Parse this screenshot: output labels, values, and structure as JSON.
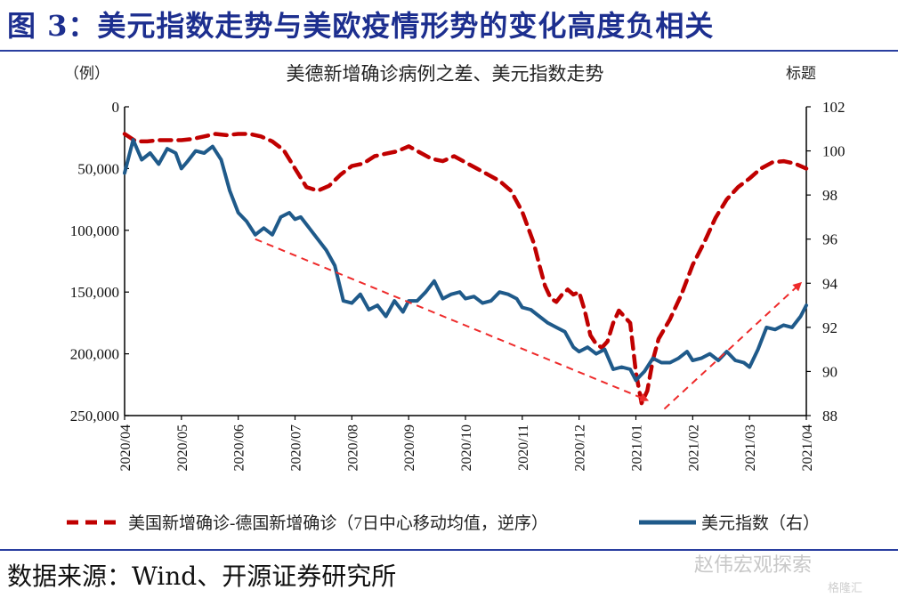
{
  "header": {
    "title": "图 3：美元指数走势与美欧疫情形势的变化高度负相关"
  },
  "footer": {
    "source": "数据来源：Wind、开源证券研究所",
    "watermark": "赵伟宏观探索",
    "watermark2": "格隆汇"
  },
  "colors": {
    "red": "#c00000",
    "blue": "#1f5a8a",
    "arrow": "#ee2b2b",
    "title": "#1d2f8f"
  },
  "chart_data": {
    "type": "line",
    "title": "美德新增确诊病例之差、美元指数走势",
    "left_axis_unit": "（例）",
    "right_axis_unit": "标题",
    "left_axis": {
      "min": 0,
      "max": 250000,
      "reversed": true,
      "ticks": [
        "0",
        "50,000",
        "100,000",
        "150,000",
        "200,000",
        "250,000"
      ]
    },
    "right_axis": {
      "min": 88,
      "max": 102,
      "ticks": [
        "88",
        "90",
        "92",
        "94",
        "96",
        "98",
        "100",
        "102"
      ]
    },
    "x_ticks": [
      "2020/04",
      "2020/05",
      "2020/06",
      "2020/07",
      "2020/08",
      "2020/09",
      "2020/10",
      "2020/11",
      "2020/12",
      "2021/01",
      "2021/02",
      "2021/03",
      "2021/04"
    ],
    "grid": false,
    "legend_position": "bottom",
    "series": [
      {
        "name": "美国新增确诊-德国新增确诊（7日中心移动均值，逆序）",
        "axis": "left",
        "style": "dashed",
        "x": [
          0,
          0.2,
          0.4,
          0.6,
          0.8,
          1.0,
          1.2,
          1.4,
          1.6,
          1.8,
          2.0,
          2.2,
          2.4,
          2.6,
          2.8,
          3.0,
          3.2,
          3.4,
          3.6,
          3.8,
          4.0,
          4.2,
          4.4,
          4.6,
          4.8,
          5.0,
          5.2,
          5.4,
          5.6,
          5.8,
          6.0,
          6.2,
          6.4,
          6.6,
          6.8,
          7.0,
          7.2,
          7.3,
          7.4,
          7.5,
          7.6,
          7.7,
          7.8,
          7.9,
          8.0,
          8.1,
          8.2,
          8.3,
          8.4,
          8.5,
          8.6,
          8.7,
          8.8,
          8.9,
          9.0,
          9.1,
          9.2,
          9.3,
          9.4,
          9.6,
          9.8,
          10.0,
          10.2,
          10.4,
          10.6,
          10.8,
          11.0,
          11.2,
          11.4,
          11.6,
          11.8,
          12.0
        ],
        "values": [
          22000,
          28000,
          28000,
          27000,
          27000,
          27000,
          26000,
          24000,
          22000,
          23000,
          22000,
          22000,
          24000,
          28000,
          35000,
          50000,
          65000,
          68000,
          64000,
          55000,
          48000,
          46000,
          40000,
          38000,
          36000,
          32000,
          37000,
          42000,
          44000,
          40000,
          45000,
          50000,
          55000,
          60000,
          68000,
          85000,
          110000,
          128000,
          145000,
          155000,
          158000,
          152000,
          148000,
          152000,
          150000,
          165000,
          185000,
          192000,
          195000,
          190000,
          175000,
          165000,
          170000,
          175000,
          215000,
          240000,
          230000,
          205000,
          188000,
          172000,
          152000,
          128000,
          110000,
          90000,
          75000,
          65000,
          58000,
          50000,
          45000,
          44000,
          46000,
          50000
        ]
      },
      {
        "name": "美元指数（右）",
        "axis": "right",
        "style": "solid",
        "x": [
          0,
          0.15,
          0.3,
          0.45,
          0.6,
          0.75,
          0.9,
          1.0,
          1.1,
          1.25,
          1.4,
          1.55,
          1.7,
          1.85,
          2.0,
          2.15,
          2.3,
          2.45,
          2.6,
          2.75,
          2.9,
          3.0,
          3.1,
          3.25,
          3.4,
          3.55,
          3.7,
          3.85,
          4.0,
          4.15,
          4.3,
          4.45,
          4.6,
          4.75,
          4.9,
          5.0,
          5.15,
          5.3,
          5.45,
          5.6,
          5.75,
          5.9,
          6.0,
          6.15,
          6.3,
          6.45,
          6.6,
          6.75,
          6.9,
          7.0,
          7.15,
          7.3,
          7.45,
          7.6,
          7.75,
          7.9,
          8.0,
          8.15,
          8.3,
          8.45,
          8.6,
          8.75,
          8.9,
          9.0,
          9.15,
          9.3,
          9.45,
          9.6,
          9.75,
          9.9,
          10.0,
          10.15,
          10.3,
          10.45,
          10.6,
          10.75,
          10.9,
          11.0,
          11.15,
          11.3,
          11.45,
          11.6,
          11.75,
          11.9,
          12.0
        ],
        "values": [
          99.0,
          100.5,
          99.6,
          99.9,
          99.4,
          100.1,
          99.9,
          99.2,
          99.5,
          100.0,
          99.9,
          100.2,
          99.6,
          98.2,
          97.2,
          96.8,
          96.2,
          96.5,
          96.2,
          97.0,
          97.2,
          96.9,
          97.0,
          96.5,
          96.0,
          95.5,
          94.8,
          93.2,
          93.1,
          93.5,
          92.8,
          93.0,
          92.5,
          93.2,
          92.7,
          93.2,
          93.2,
          93.6,
          94.1,
          93.3,
          93.5,
          93.6,
          93.3,
          93.4,
          93.1,
          93.2,
          93.6,
          93.5,
          93.3,
          92.9,
          92.8,
          92.5,
          92.2,
          92.0,
          91.8,
          91.1,
          90.9,
          91.1,
          90.8,
          91.0,
          90.1,
          90.2,
          90.1,
          89.6,
          90.0,
          90.6,
          90.4,
          90.4,
          90.6,
          90.9,
          90.5,
          90.6,
          90.8,
          90.5,
          90.9,
          90.5,
          90.4,
          90.2,
          91.0,
          92.0,
          91.9,
          92.1,
          92.0,
          92.5,
          93.0
        ]
      }
    ],
    "annotations": [
      {
        "type": "dashed-arrow",
        "from": [
          2.3,
          96.0
        ],
        "to": [
          9.2,
          88.7
        ],
        "axis": "right"
      },
      {
        "type": "dashed-arrow",
        "from": [
          9.5,
          88.3
        ],
        "to": [
          11.9,
          94.0
        ],
        "axis": "right"
      }
    ]
  }
}
